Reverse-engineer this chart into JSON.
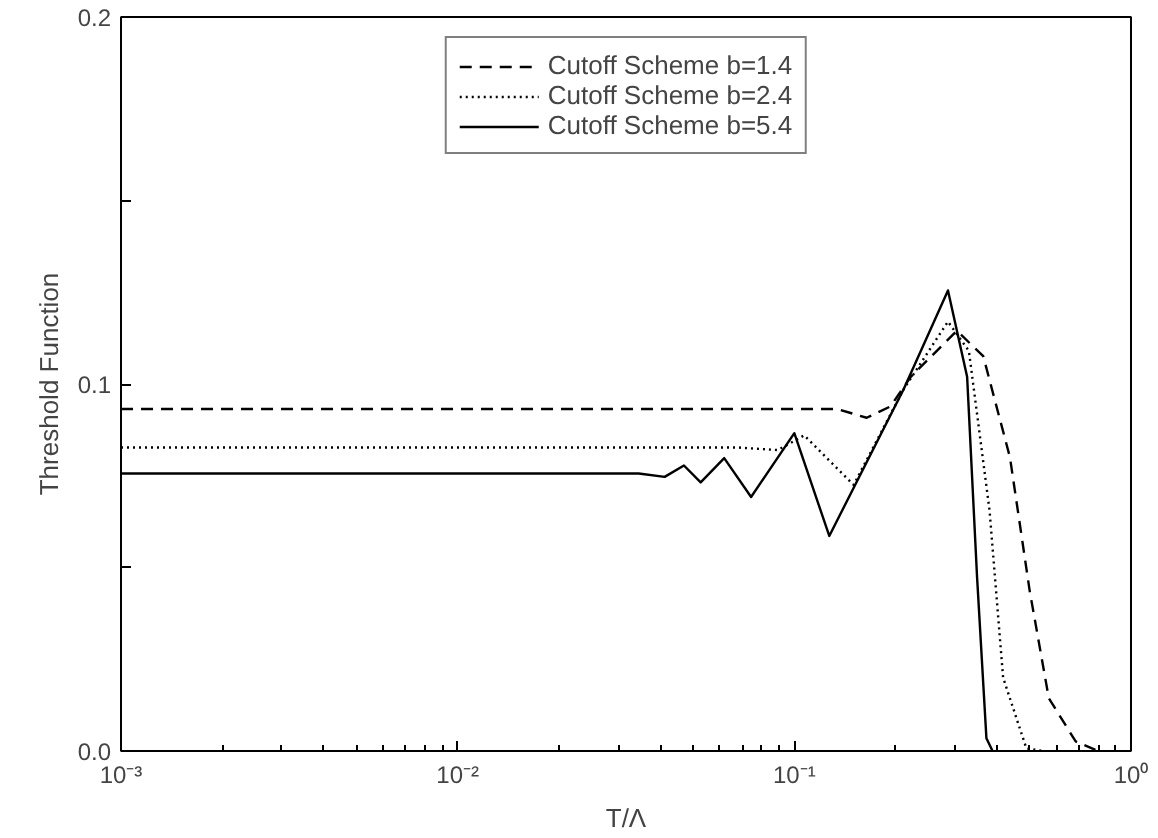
{
  "chart_data": {
    "type": "line",
    "xlabel": "T/Λ",
    "ylabel": "Threshold Function",
    "log": "x",
    "xlim": [
      0.001,
      1
    ],
    "ylim": [
      0,
      0.2
    ],
    "xticks": [
      {
        "value": 0.001,
        "label": "10⁻³"
      },
      {
        "value": 0.01,
        "label": "10⁻²"
      },
      {
        "value": 0.1,
        "label": "10⁻¹"
      },
      {
        "value": 1,
        "label": "10⁰"
      }
    ],
    "yticks": [
      {
        "value": 0,
        "label": "0.0"
      },
      {
        "value": 0.05,
        "label": null
      },
      {
        "value": 0.1,
        "label": "0.1"
      },
      {
        "value": 0.15,
        "label": null
      },
      {
        "value": 0.2,
        "label": "0.2"
      }
    ],
    "grid": false,
    "legend": "top",
    "series": [
      {
        "name": "Cutoff Scheme b=1.4",
        "color": "#000000",
        "line_style": "dashed",
        "x": [
          0.001,
          0.134,
          0.164,
          0.193,
          0.222,
          0.304,
          0.364,
          0.437,
          0.5,
          0.57,
          0.685,
          0.8
        ],
        "values": [
          0.0932,
          0.0932,
          0.0908,
          0.0939,
          0.102,
          0.1145,
          0.1076,
          0.08,
          0.0437,
          0.0144,
          0.0026,
          0
        ]
      },
      {
        "name": "Cutoff Scheme b=2.4",
        "color": "#000000",
        "line_style": "dotted",
        "x": [
          0.001,
          0.068,
          0.0893,
          0.107,
          0.15,
          0.211,
          0.286,
          0.33,
          0.38,
          0.417,
          0.489,
          0.55
        ],
        "values": [
          0.0827,
          0.0827,
          0.082,
          0.086,
          0.0725,
          0.0985,
          0.117,
          0.109,
          0.0656,
          0.02,
          0.0007,
          0
        ]
      },
      {
        "name": "Cutoff Scheme b=5.4",
        "color": "#000000",
        "line_style": "solid",
        "x": [
          0.001,
          0.0345,
          0.0412,
          0.047,
          0.0527,
          0.0619,
          0.0744,
          0.1,
          0.127,
          0.211,
          0.286,
          0.326,
          0.349,
          0.372,
          0.388
        ],
        "values": [
          0.0756,
          0.0756,
          0.0747,
          0.0778,
          0.0732,
          0.0798,
          0.0692,
          0.0866,
          0.0586,
          0.0985,
          0.1255,
          0.102,
          0.0473,
          0.0035,
          0
        ]
      }
    ]
  }
}
